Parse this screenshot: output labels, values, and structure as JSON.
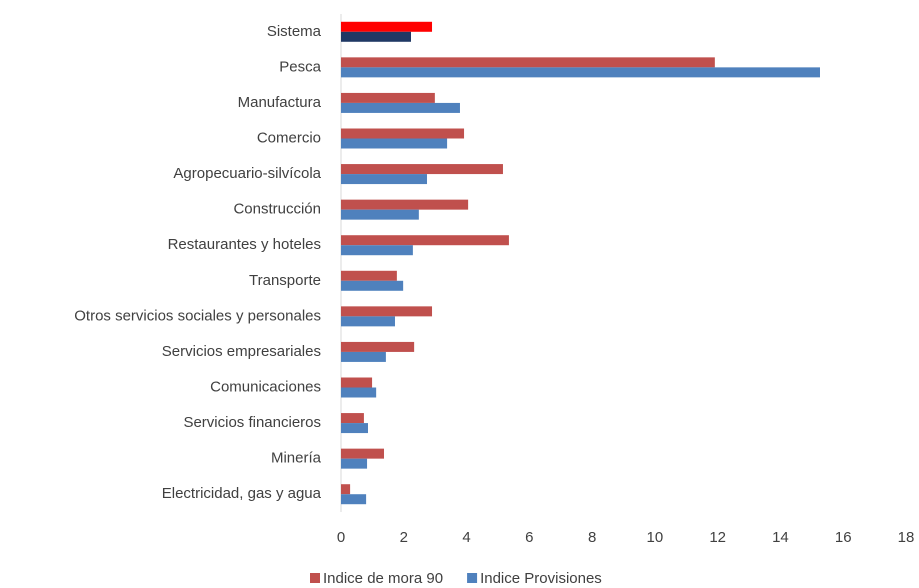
{
  "chart_data": {
    "type": "hbar",
    "categories": [
      "Sistema",
      "Pesca",
      "Manufactura",
      "Comercio",
      "Agropecuario-silvícola",
      "Construcción",
      "Restaurantes y hoteles",
      "Transporte",
      "Otros servicios sociales y personales",
      "Servicios empresariales",
      "Comunicaciones",
      "Servicios financieros",
      "Minería",
      "Electricidad, gas y agua"
    ],
    "series": [
      {
        "name": "Indice de mora 90",
        "color": "#c0504d",
        "colors": [
          "#ff0000",
          "#c0504d",
          "#c0504d",
          "#c0504d",
          "#c0504d",
          "#c0504d",
          "#c0504d",
          "#c0504d",
          "#c0504d",
          "#c0504d",
          "#c0504d",
          "#c0504d",
          "#c0504d",
          "#c0504d"
        ],
        "values": [
          2.9,
          11.91,
          2.99,
          3.92,
          5.16,
          4.05,
          5.35,
          1.78,
          2.9,
          2.33,
          0.99,
          0.73,
          1.37,
          0.29
        ]
      },
      {
        "name": "Indice Provisiones",
        "color": "#4f81bd",
        "colors": [
          "#1f3864",
          "#4f81bd",
          "#4f81bd",
          "#4f81bd",
          "#4f81bd",
          "#4f81bd",
          "#4f81bd",
          "#4f81bd",
          "#4f81bd",
          "#4f81bd",
          "#4f81bd",
          "#4f81bd",
          "#4f81bd",
          "#4f81bd"
        ],
        "values": [
          2.23,
          15.26,
          3.79,
          3.38,
          2.74,
          2.48,
          2.29,
          1.98,
          1.72,
          1.43,
          1.12,
          0.86,
          0.83,
          0.8
        ]
      }
    ],
    "xlim": [
      0,
      18
    ],
    "xticks": [
      0,
      2,
      4,
      6,
      8,
      10,
      12,
      14,
      16,
      18
    ],
    "grid": false,
    "legend": "bottom"
  }
}
